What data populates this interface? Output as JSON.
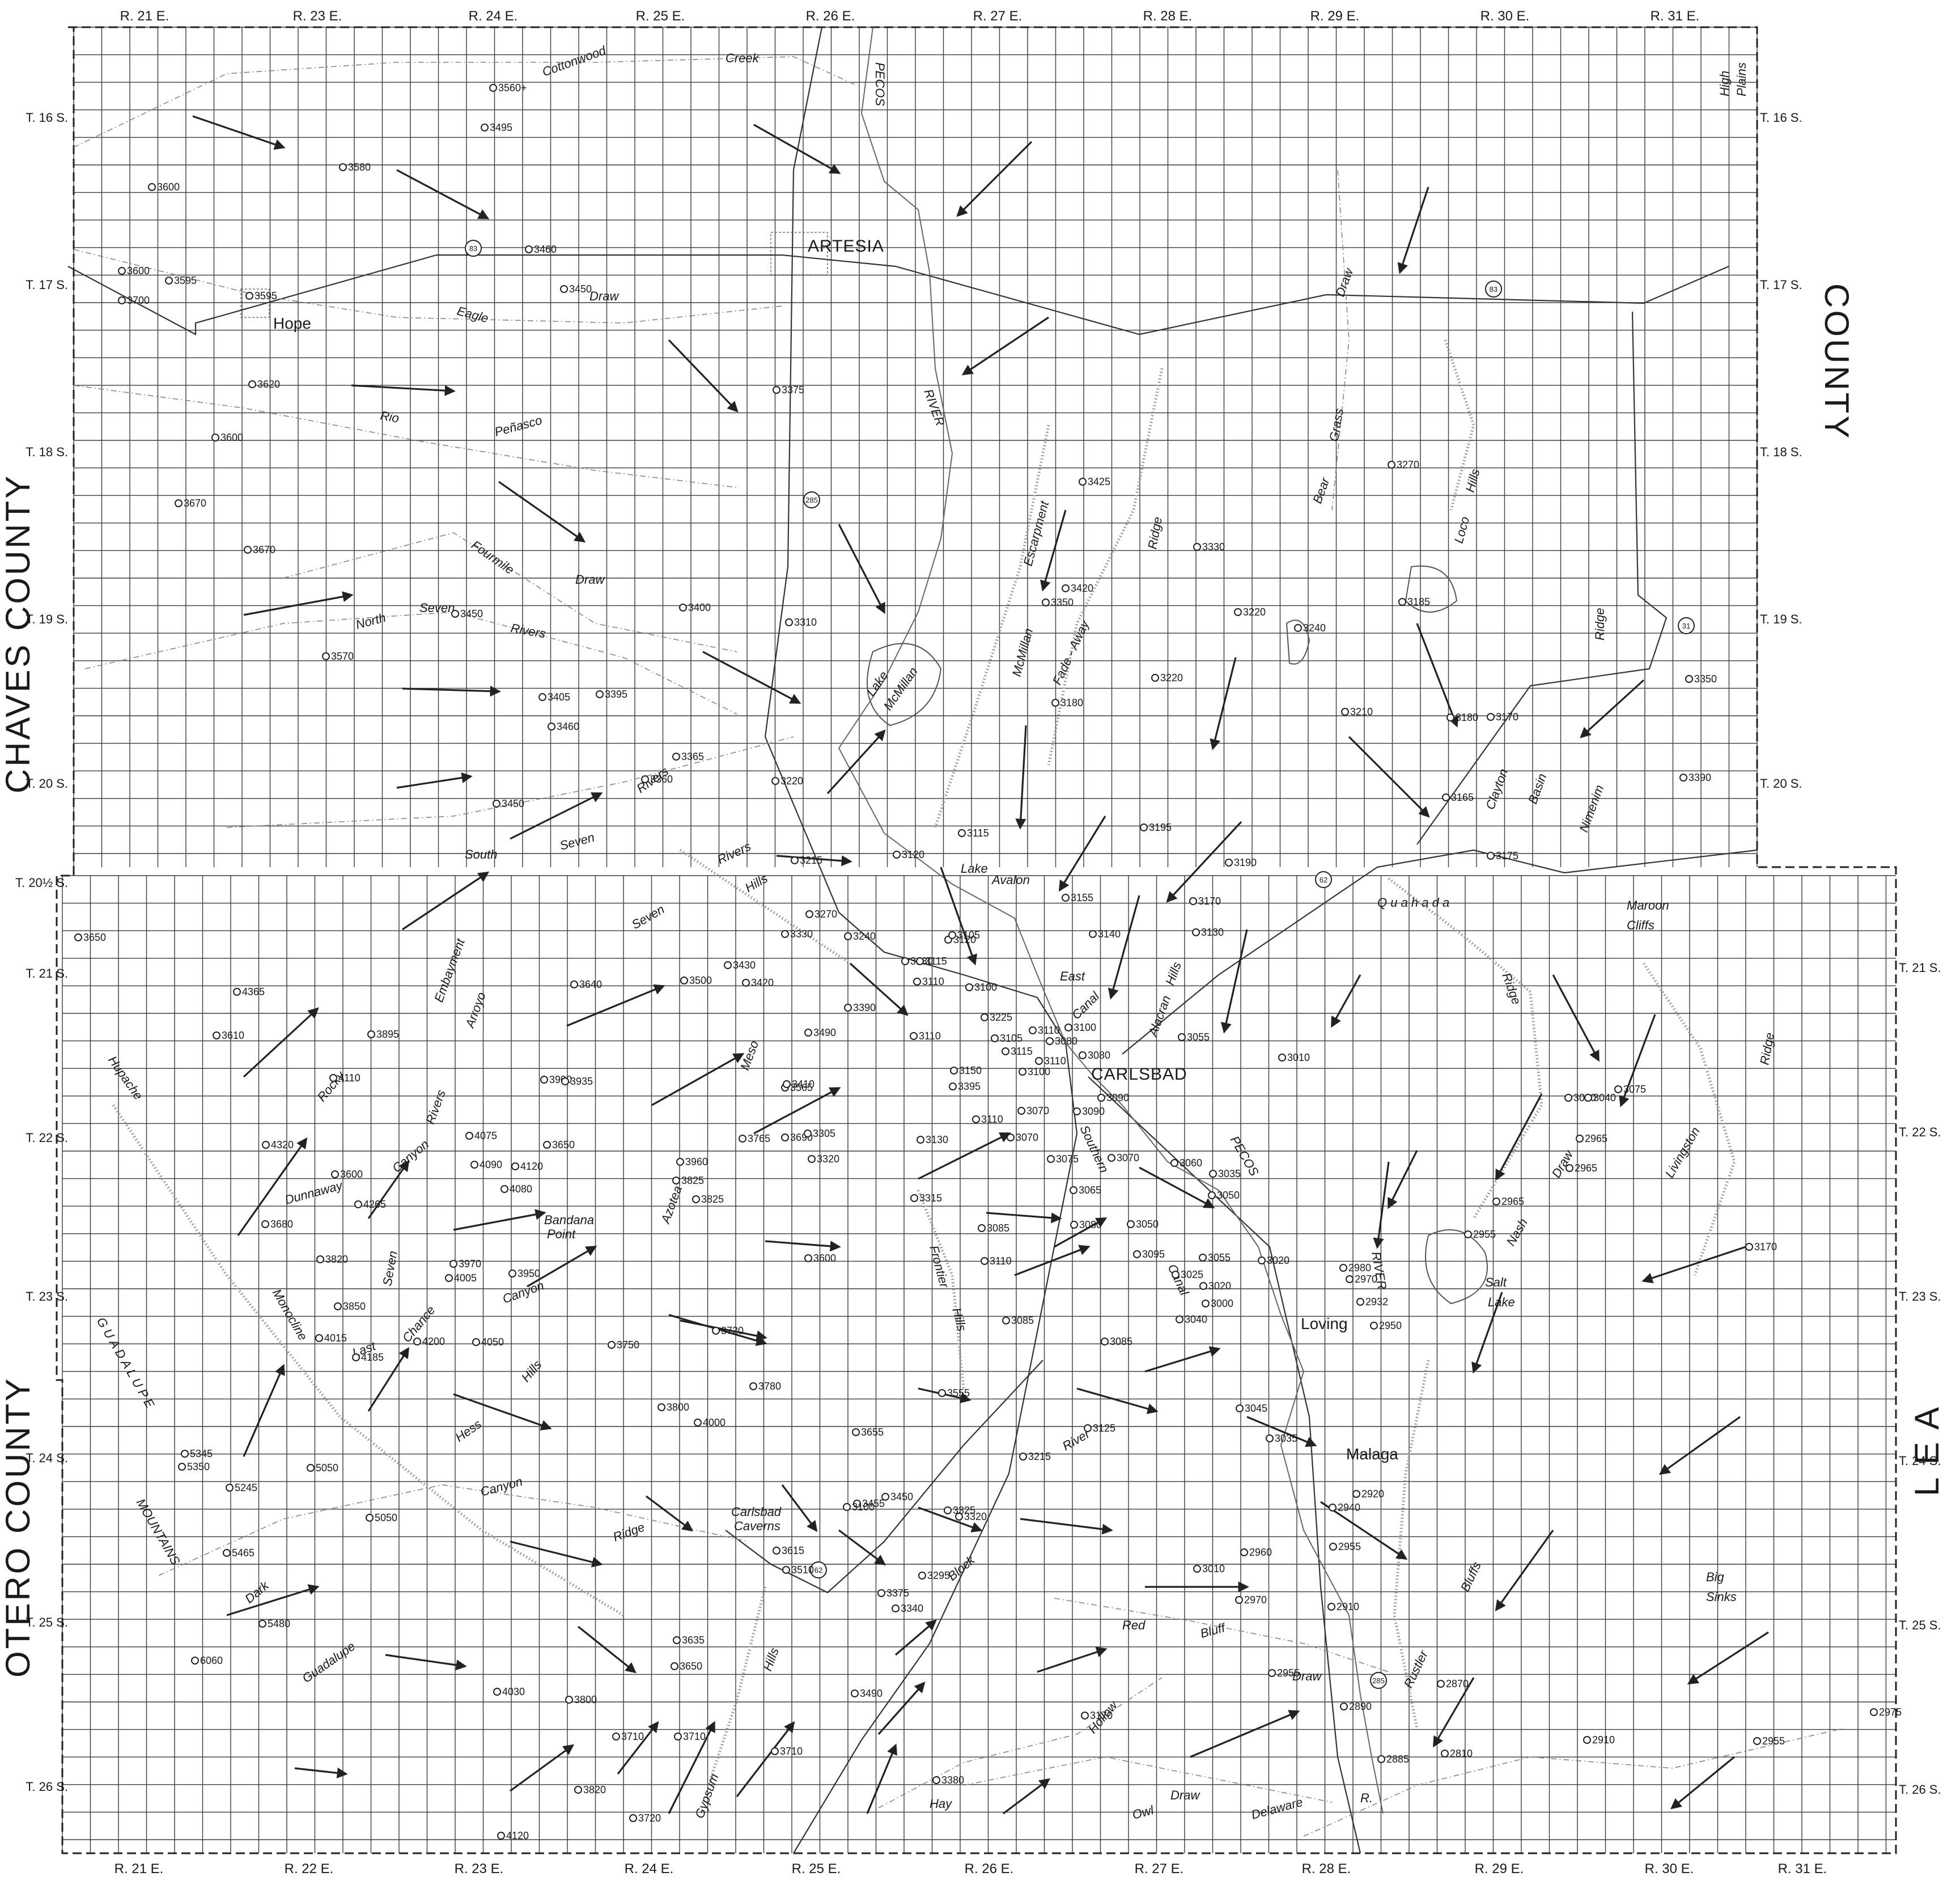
{
  "counties": {
    "chaves": "CHAVES COUNTY",
    "otero": "OTERO COUNTY",
    "eddy_lea_right": "COUNTY",
    "lea": "L E A"
  },
  "ranges_top": [
    "R. 21 E.",
    "R. 23 E.",
    "R. 24 E.",
    "R. 25 E.",
    "R. 26 E.",
    "R. 27 E.",
    "R. 28 E.",
    "R. 29 E.",
    "R. 30 E.",
    "R. 31 E."
  ],
  "ranges_bottom": [
    "R. 21 E.",
    "R. 22 E.",
    "R. 23 E.",
    "R. 24 E.",
    "R. 25 E.",
    "R. 26 E.",
    "R. 27 E.",
    "R. 28 E.",
    "R. 29 E.",
    "R. 30 E.",
    "R. 31 E."
  ],
  "townships_left": [
    "T. 16 S.",
    "T. 17 S.",
    "T. 18 S.",
    "T. 19 S.",
    "T. 20 S.",
    "T. 20½ S.",
    "T. 21 S.",
    "T. 22 S.",
    "T. 23 S.",
    "T. 24 S.",
    "T. 25 S.",
    "T. 26 S."
  ],
  "townships_right": [
    "T. 16 S.",
    "T. 17 S.",
    "T. 18 S.",
    "T. 19 S.",
    "T. 20 S.",
    "T. 21 S.",
    "T. 22 S.",
    "T. 23 S.",
    "T. 24 S.",
    "T. 25 S.",
    "T. 26 S."
  ],
  "towns": {
    "artesia": "ARTESIA",
    "hope": "Hope",
    "carlsbad": "CARLSBAD",
    "loving": "Loving",
    "malaga": "Malaga"
  },
  "route_shields": [
    "83",
    "83",
    "285",
    "285",
    "31",
    "62",
    "62"
  ],
  "features": {
    "cottonwood": "Cottonwood",
    "creek": "Creek",
    "pecos_north": "PECOS",
    "pecos_south": "PECOS",
    "river_north": "RIVER",
    "river_south": "RIVER",
    "eagle": "Eagle",
    "draw_eagle": "Draw",
    "rio": "Rio",
    "penasco": "Peñasco",
    "fourmile": "Fourmile",
    "draw_fourmile": "Draw",
    "north": "North",
    "seven_n": "Seven",
    "rivers_n": "Rivers",
    "seven_rivers": "Rivers",
    "south": "South",
    "seven_s": "Seven",
    "seven_hills_a": "Seven",
    "seven_hills_b": "Hills",
    "rivers_hills": "Rivers",
    "lake_mcmillan_a": "Lake",
    "lake_mcmillan_b": "McMillan",
    "mcmillan": "McMillan",
    "escarpment": "Escarpment",
    "fade_away": "Fade - Away",
    "ridge_fade": "Ridge",
    "lake_avalon_a": "Lake",
    "lake_avalon_b": "Avalon",
    "bear": "Bear",
    "grass": "Grass",
    "draw_bg": "Draw",
    "loco": "Loco",
    "hills_loco": "Hills",
    "ridge_e": "Ridge",
    "clayton": "Clayton",
    "basin": "Basin",
    "nimenim": "Nimenim",
    "high": "High",
    "plains": "Plains",
    "quahada": "Q u a h a d a",
    "ridge_q": "Ridge",
    "maroon": "Maroon",
    "cliffs": "Cliffs",
    "livingston": "Livingston",
    "ridge_l": "Ridge",
    "nash": "Nash",
    "draw_nash": "Draw",
    "salt": "Salt",
    "lake_salt": "Lake",
    "east": "East",
    "canal_e": "Canal",
    "alacran": "Alacran",
    "hills_al": "Hills",
    "southern": "Southern",
    "canal_s": "Canal",
    "rustler": "Rustler",
    "bluffs": "Bluffs",
    "big": "Big",
    "sinks": "Sinks",
    "red": "Red",
    "bluff": "Bluff",
    "draw_rb": "Draw",
    "hay": "Hay",
    "hollow": "Hollow",
    "owl": "Owl",
    "draw_owl": "Draw",
    "delaware": "Delaware",
    "r_del": "R.",
    "embayment": "Embayment",
    "arroyo": "Arroyo",
    "rocky": "Rocky",
    "hupache": "Hupache",
    "guadalupe_mts": "G U A D A L U P E",
    "mountains": "MOUNTAINS",
    "rivers_canyon_a": "Rivers",
    "canyon_r": "Canyon",
    "dunnaway": "Dunnaway",
    "bandana_a": "Bandana",
    "bandana_b": "Point",
    "monocline": "Monocline",
    "seven_v": "Seven",
    "last": "Last",
    "chance": "Chance",
    "canyon_c": "Canyon",
    "hess": "Hess",
    "hills_h": "Hills",
    "canyon_g": "Canyon",
    "ridge_g": "Ridge",
    "dark": "Dark",
    "guadalupe": "Guadalupe",
    "meso": "Meso",
    "azotea": "Azotea",
    "frontier": "Frontier",
    "hills_f": "Hills",
    "carlsbad_a": "Carlsbad",
    "carlsbad_b": "Caverns",
    "gypsum": "Gypsum",
    "hills_gy": "Hills",
    "block": "Block",
    "river_b": "River"
  },
  "elevations": [
    "3560+",
    "3495",
    "3580",
    "3600",
    "3600",
    "3595",
    "3700",
    "3595",
    "3460",
    "3450",
    "3620",
    "3600",
    "3670",
    "3670",
    "3375",
    "3570",
    "3450",
    "3405",
    "3395",
    "3460",
    "3400",
    "3310",
    "3365",
    "3360",
    "3450",
    "3220",
    "3215",
    "3120",
    "3115",
    "3180",
    "3425",
    "3350",
    "3420",
    "3330",
    "3220",
    "3220",
    "3240",
    "3195",
    "3190",
    "3210",
    "3270",
    "3185",
    "3180",
    "3170",
    "3165",
    "3175",
    "3350",
    "3390",
    "3650",
    "4365",
    "3610",
    "3895",
    "4110",
    "3640",
    "3500",
    "3430",
    "3420",
    "3330",
    "3270",
    "3240",
    "3390",
    "3490",
    "3130",
    "3115",
    "3110",
    "3120",
    "3105",
    "3110",
    "3100",
    "3110",
    "3225",
    "3105",
    "3115",
    "3100",
    "3110",
    "3150",
    "3395",
    "3080",
    "3100",
    "3080",
    "3090",
    "3155",
    "3140",
    "3130",
    "3170",
    "3055",
    "3010",
    "3900",
    "3935",
    "4075",
    "3650",
    "4090",
    "4120",
    "3565",
    "3410",
    "3690",
    "3765",
    "3305",
    "3130",
    "3110",
    "3070",
    "3070",
    "3075",
    "3090",
    "3070",
    "4320",
    "3600",
    "4265",
    "3680",
    "4080",
    "3960",
    "3825",
    "3825",
    "3320",
    "3315",
    "3065",
    "3080",
    "3060",
    "3035",
    "3050",
    "3820",
    "3970",
    "4005",
    "3950",
    "3600",
    "3085",
    "3110",
    "3050",
    "3095",
    "3055",
    "3025",
    "3020",
    "3000",
    "3040",
    "3020",
    "2980",
    "2970",
    "2932",
    "2950",
    "3850",
    "4015",
    "4200",
    "4050",
    "4185",
    "3750",
    "3720",
    "3555",
    "3085",
    "3085",
    "3780",
    "3800",
    "4000",
    "3655",
    "3125",
    "3045",
    "3035",
    "2965",
    "3170",
    "5345",
    "5350",
    "5050",
    "5245",
    "3455",
    "3450",
    "3215",
    "3100",
    "3325",
    "3320",
    "2920",
    "2940",
    "5050",
    "5465",
    "3510",
    "3615",
    "3375",
    "3295",
    "3010",
    "2960",
    "2955",
    "2970",
    "2910",
    "5480",
    "6060",
    "3635",
    "3650",
    "3340",
    "2955",
    "4030",
    "3800",
    "3490",
    "2890",
    "2870",
    "3710",
    "3710",
    "3170",
    "3380",
    "2885",
    "2810",
    "2910",
    "2955",
    "2975",
    "3710",
    "3820",
    "3720",
    "4120",
    "3020",
    "3040",
    "3075",
    "2965",
    "2955",
    "2965"
  ]
}
